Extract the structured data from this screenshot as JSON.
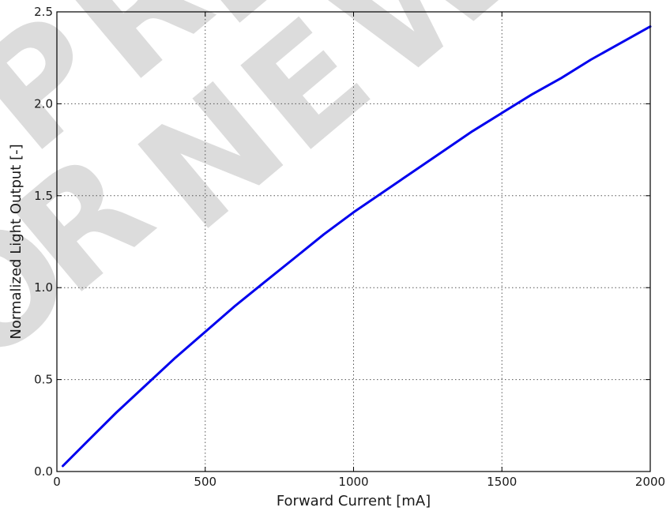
{
  "chart_data": {
    "type": "line",
    "xlabel": "Forward Current [mA]",
    "ylabel": "Normalized Light Output [-]",
    "xlim": [
      0,
      2000
    ],
    "ylim": [
      0,
      2.5
    ],
    "x_ticks": [
      0,
      500,
      1000,
      1500,
      2000
    ],
    "y_ticks": [
      0.0,
      0.5,
      1.0,
      1.5,
      2.0,
      2.5
    ],
    "x_tick_labels": [
      "0",
      "500",
      "1000",
      "1500",
      "2000"
    ],
    "y_tick_labels": [
      "0.0",
      "0.5",
      "1.0",
      "1.5",
      "2.0",
      "2.5"
    ],
    "grid": true,
    "series": [
      {
        "color": "#0000ee",
        "x": [
          20,
          100,
          200,
          300,
          400,
          500,
          600,
          700,
          800,
          900,
          1000,
          1100,
          1200,
          1300,
          1400,
          1500,
          1600,
          1700,
          1800,
          1900,
          2000
        ],
        "y": [
          0.03,
          0.16,
          0.32,
          0.47,
          0.62,
          0.76,
          0.9,
          1.03,
          1.16,
          1.29,
          1.41,
          1.52,
          1.63,
          1.74,
          1.85,
          1.95,
          2.05,
          2.14,
          2.24,
          2.33,
          2.42
        ]
      }
    ]
  },
  "watermark": {
    "line1": "PREC",
    "line2": "OR NEW"
  }
}
